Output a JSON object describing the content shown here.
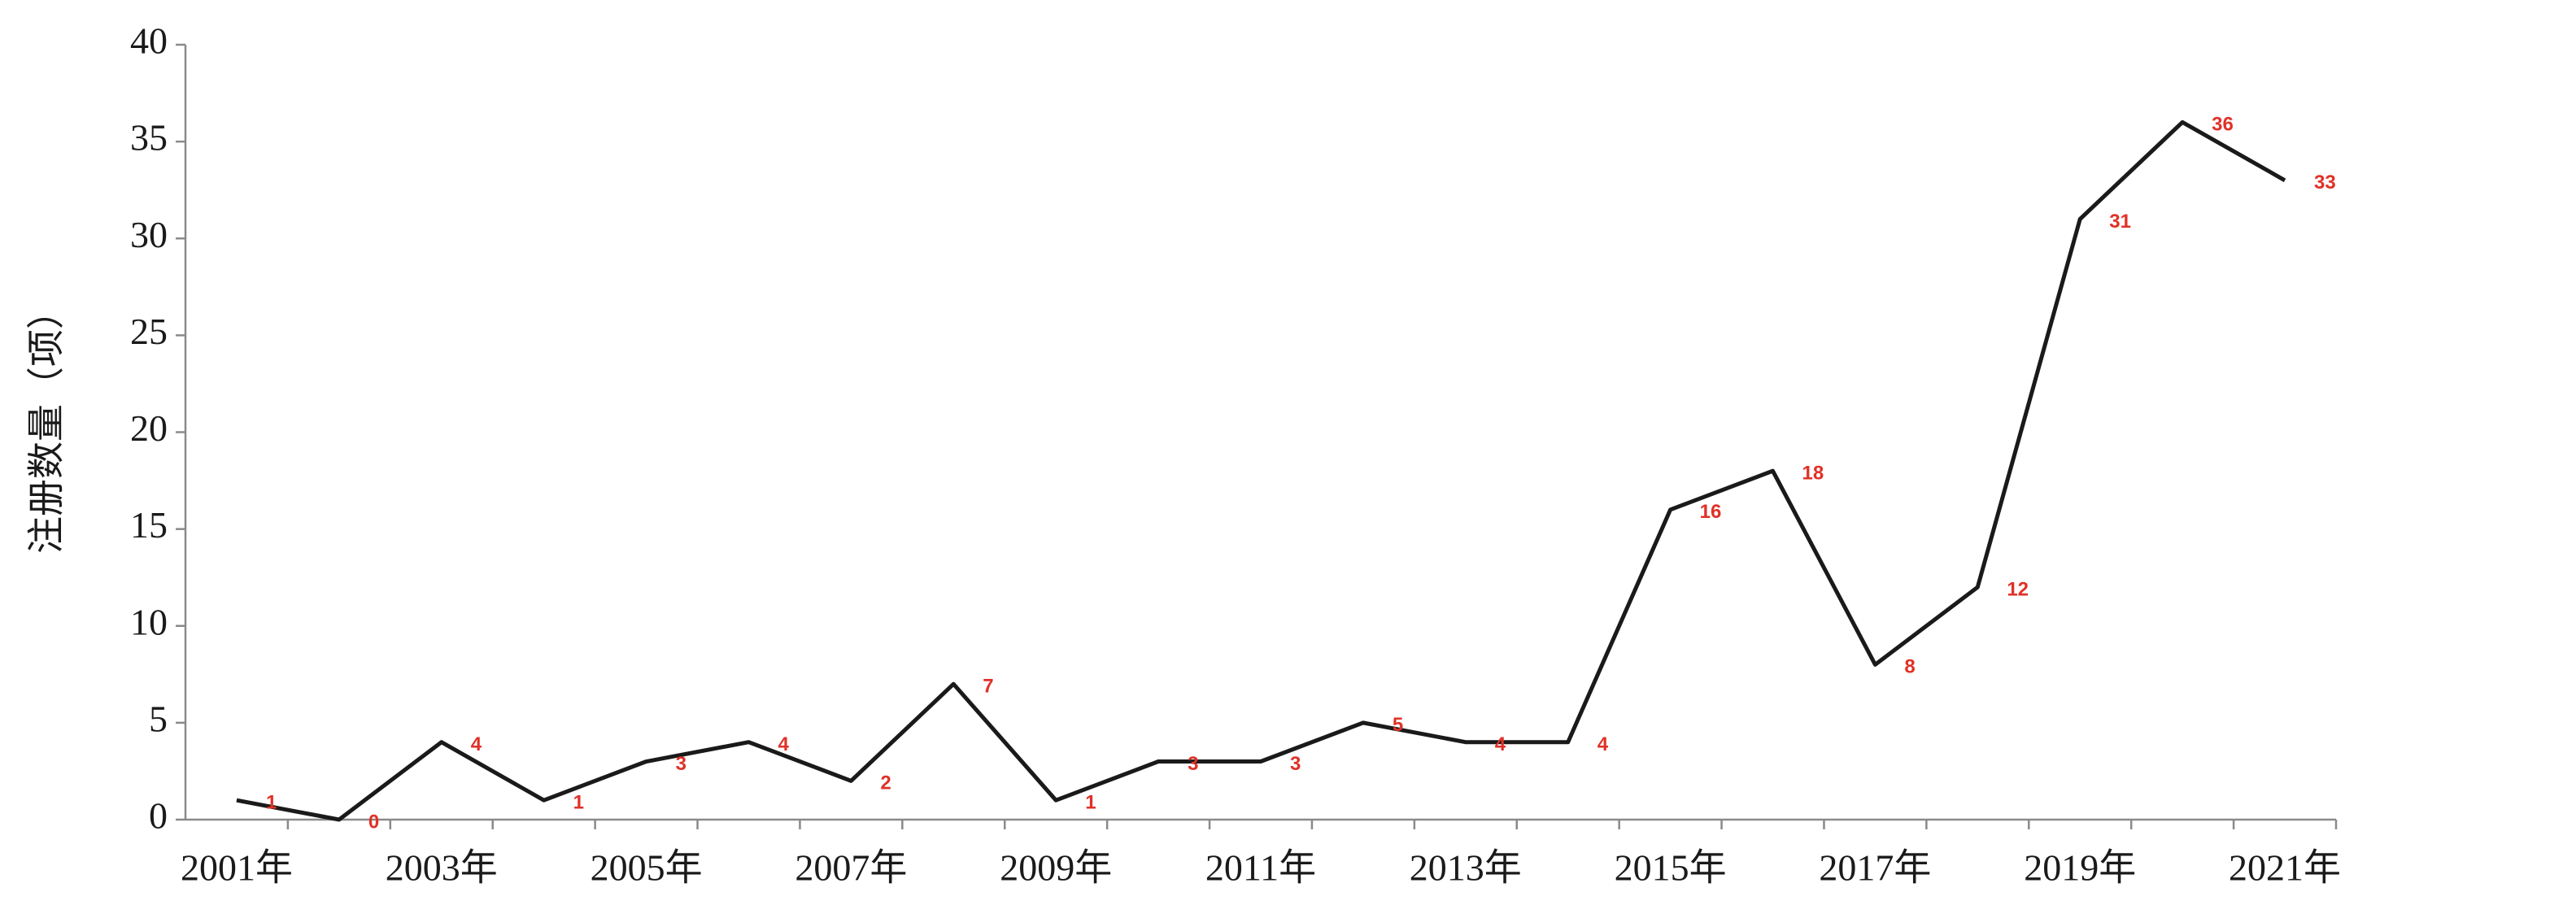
{
  "chart_data": {
    "type": "line",
    "ylabel": "注册数量（项）",
    "categories": [
      "2001年",
      null,
      "2003年",
      null,
      "2005年",
      null,
      "2007年",
      null,
      "2009年",
      null,
      "2011年",
      null,
      "2013年",
      null,
      "2015年",
      null,
      "2017年",
      null,
      "2019年",
      null,
      "2021年"
    ],
    "values": [
      1,
      0,
      4,
      1,
      3,
      4,
      2,
      7,
      1,
      3,
      3,
      5,
      4,
      4,
      16,
      18,
      8,
      12,
      31,
      36,
      33
    ],
    "color": "#1a1a1a",
    "label_color": "#e03127",
    "ylim": [
      0,
      40
    ],
    "yticks": [
      0,
      5,
      10,
      15,
      20,
      25,
      30,
      35,
      40
    ],
    "grid": false
  }
}
